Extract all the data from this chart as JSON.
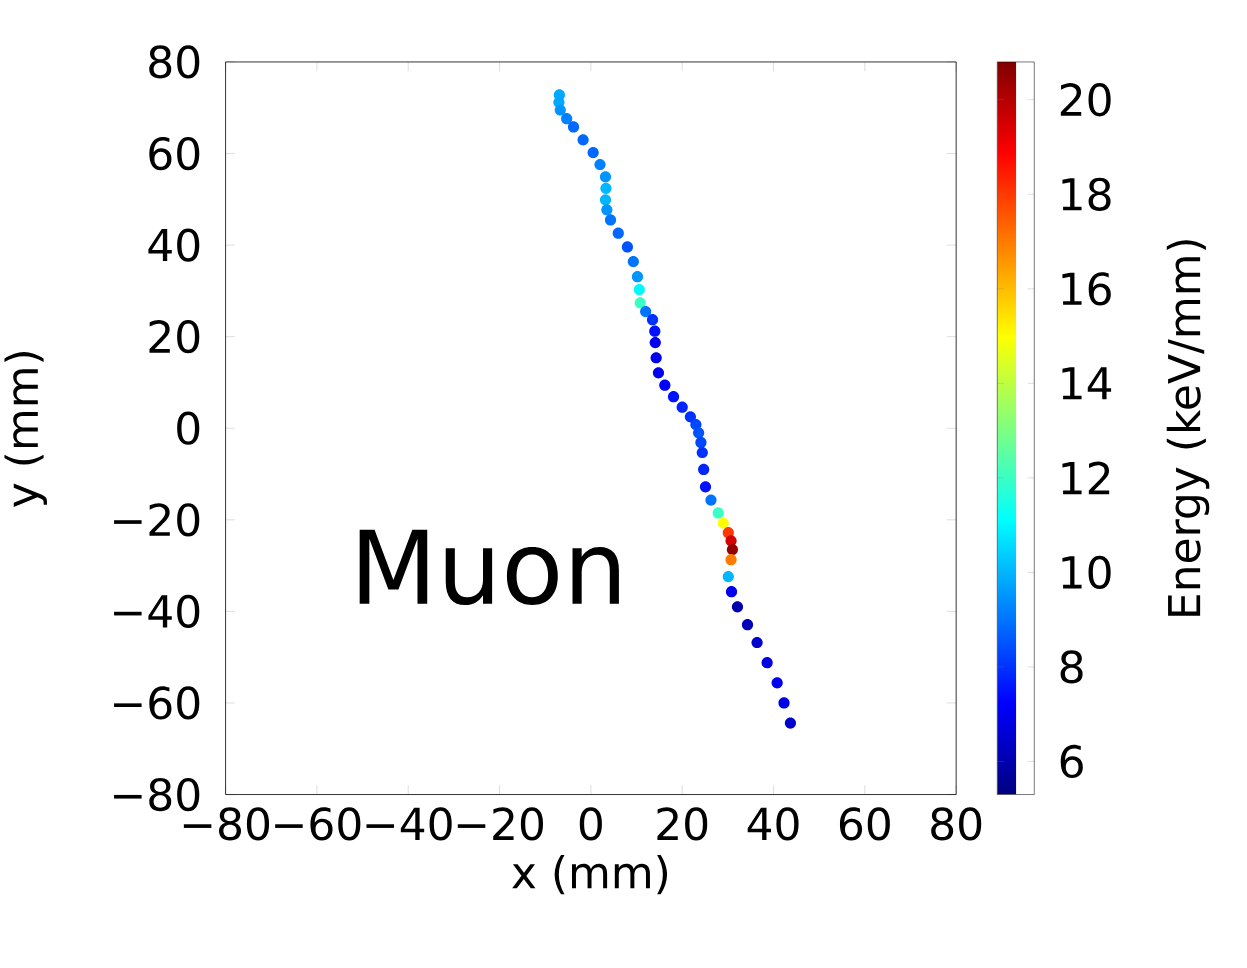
{
  "chart_data": {
    "type": "scatter",
    "xlabel": "x (mm)",
    "ylabel": "y (mm)",
    "clabel": "Energy (keV/mm)",
    "annotations": [
      "Muon"
    ],
    "series": [
      {
        "x": [
          -6.9,
          -7.0,
          -6.7,
          -5.3,
          -3.8,
          -1.7,
          0.5,
          2.0,
          3.2,
          3.3,
          3.2,
          3.5,
          4.3,
          6.0,
          8.0,
          9.3,
          10.2,
          10.6,
          10.8,
          12.0,
          13.5,
          14.0,
          14.1,
          14.3,
          14.8,
          16.2,
          18.1,
          20.0,
          21.8,
          23.0,
          23.6,
          24.1,
          24.4,
          24.7,
          25.1,
          26.3,
          27.9,
          29.0,
          30.1,
          30.7,
          31.0,
          30.7,
          30.1,
          30.8,
          32.1,
          34.3,
          36.4,
          38.6,
          40.8,
          42.3,
          43.7
        ],
        "values": [
          72.8,
          71.2,
          69.5,
          67.6,
          65.8,
          63.0,
          60.2,
          57.6,
          54.9,
          52.4,
          49.9,
          47.7,
          45.5,
          42.6,
          39.6,
          36.4,
          33.1,
          30.3,
          27.4,
          25.5,
          23.7,
          21.2,
          18.7,
          15.4,
          12.1,
          9.4,
          6.9,
          4.6,
          2.5,
          0.8,
          -1.0,
          -3.1,
          -5.3,
          -9.0,
          -12.8,
          -15.7,
          -18.5,
          -20.7,
          -22.8,
          -24.6,
          -26.5,
          -28.7,
          -32.4,
          -35.7,
          -39.0,
          -42.9,
          -46.8,
          -51.2,
          -55.6,
          -60.0,
          -64.4
        ],
        "cvalues": [
          9.8,
          9.8,
          9.5,
          9.2,
          8.8,
          8.8,
          8.8,
          9.2,
          9.5,
          10,
          10,
          9.5,
          9,
          8.8,
          8.5,
          9,
          9.5,
          11,
          12,
          9,
          8,
          7.5,
          7,
          7,
          7,
          7.2,
          7.5,
          7.8,
          8,
          8.3,
          8.5,
          8.3,
          8,
          7.8,
          7.5,
          9,
          12,
          15,
          18,
          19.5,
          20.5,
          17,
          10,
          7,
          6,
          6.2,
          6.5,
          6.8,
          7,
          6.8,
          6.5
        ]
      }
    ],
    "xlim": [
      -80,
      80
    ],
    "ylim": [
      -80,
      80
    ],
    "xticks": [
      {
        "value": -80,
        "label": "−80"
      },
      {
        "value": -60,
        "label": "−60"
      },
      {
        "value": -40,
        "label": "−40"
      },
      {
        "value": -20,
        "label": "−20"
      },
      0,
      20,
      40,
      60,
      80
    ],
    "yticks": [
      {
        "value": -80,
        "label": "−80"
      },
      {
        "value": -60,
        "label": "−60"
      },
      {
        "value": -40,
        "label": "−40"
      },
      {
        "value": -20,
        "label": "−20"
      },
      0,
      20,
      40,
      60,
      80
    ],
    "clim": [
      5.3,
      20.8
    ],
    "cticks": [
      6,
      8,
      10,
      12,
      14,
      16,
      18,
      20
    ],
    "marker": "circle"
  }
}
